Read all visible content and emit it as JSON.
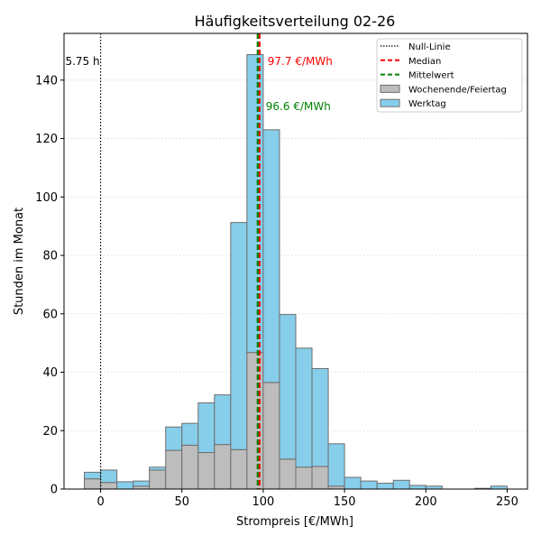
{
  "chart_data": {
    "type": "bar",
    "title": "Häufigkeitsverteilung 02-26",
    "xlabel": "Strompreis [€/MWh]",
    "ylabel": "Stunden im Monat",
    "xlim": [
      -22.5,
      262.5
    ],
    "ylim": [
      0,
      156
    ],
    "xticks": [
      0,
      50,
      100,
      150,
      200,
      250
    ],
    "yticks": [
      0,
      20,
      40,
      60,
      80,
      100,
      120,
      140
    ],
    "grid": "y-dotted",
    "legend_position": "top-right",
    "bins": [
      {
        "from": -10,
        "to": 0,
        "werktag": 2.25,
        "wochenende": 3.5
      },
      {
        "from": 0,
        "to": 10,
        "werktag": 4.25,
        "wochenende": 2.25
      },
      {
        "from": 10,
        "to": 20,
        "werktag": 2.5,
        "wochenende": 0
      },
      {
        "from": 20,
        "to": 30,
        "werktag": 1.75,
        "wochenende": 1
      },
      {
        "from": 30,
        "to": 40,
        "werktag": 1,
        "wochenende": 6.5
      },
      {
        "from": 40,
        "to": 50,
        "werktag": 8,
        "wochenende": 13.25
      },
      {
        "from": 50,
        "to": 60,
        "werktag": 7.5,
        "wochenende": 15
      },
      {
        "from": 60,
        "to": 70,
        "werktag": 17,
        "wochenende": 12.5
      },
      {
        "from": 70,
        "to": 80,
        "werktag": 17,
        "wochenende": 15.25
      },
      {
        "from": 80,
        "to": 90,
        "werktag": 77.75,
        "wochenende": 13.5
      },
      {
        "from": 90,
        "to": 100,
        "werktag": 102,
        "wochenende": 46.75
      },
      {
        "from": 100,
        "to": 110,
        "werktag": 86.5,
        "wochenende": 36.5
      },
      {
        "from": 110,
        "to": 120,
        "werktag": 49.5,
        "wochenende": 10.25
      },
      {
        "from": 120,
        "to": 130,
        "werktag": 40.75,
        "wochenende": 7.5
      },
      {
        "from": 130,
        "to": 140,
        "werktag": 33.5,
        "wochenende": 7.75
      },
      {
        "from": 140,
        "to": 150,
        "werktag": 14.5,
        "wochenende": 1
      },
      {
        "from": 150,
        "to": 160,
        "werktag": 4,
        "wochenende": 0
      },
      {
        "from": 160,
        "to": 170,
        "werktag": 2.75,
        "wochenende": 0
      },
      {
        "from": 170,
        "to": 180,
        "werktag": 2,
        "wochenende": 0
      },
      {
        "from": 180,
        "to": 190,
        "werktag": 3,
        "wochenende": 0
      },
      {
        "from": 190,
        "to": 200,
        "werktag": 1.25,
        "wochenende": 0
      },
      {
        "from": 200,
        "to": 210,
        "werktag": 1,
        "wochenende": 0
      },
      {
        "from": 210,
        "to": 220,
        "werktag": 0,
        "wochenende": 0
      },
      {
        "from": 220,
        "to": 230,
        "werktag": 0,
        "wochenende": 0
      },
      {
        "from": 230,
        "to": 240,
        "werktag": 0.25,
        "wochenende": 0
      },
      {
        "from": 240,
        "to": 250,
        "werktag": 1,
        "wochenende": 0
      }
    ],
    "series": [
      {
        "name": "Wochenende/Feiertag",
        "color": "#bdbdbd",
        "key": "wochenende"
      },
      {
        "name": "Werktag",
        "color": "#87ceeb",
        "key": "werktag"
      }
    ],
    "lines": [
      {
        "name": "Null-Linie",
        "x": 0,
        "color": "#000000",
        "style": "dotted"
      },
      {
        "name": "Median",
        "x": 97.7,
        "color": "#ff0000",
        "style": "dashed"
      },
      {
        "name": "Mittelwert",
        "x": 96.6,
        "color": "#008000",
        "style": "dashed"
      }
    ],
    "annotations": [
      {
        "text": "5.75 h",
        "x": 0,
        "y": 146.5,
        "color": "#000000",
        "anchor": "end"
      },
      {
        "text": "97.7 €/MWh",
        "x": 97.7,
        "y": 146.5,
        "color": "#ff0000",
        "anchor": "start"
      },
      {
        "text": "96.6 €/MWh",
        "x": 96.6,
        "y": 131,
        "color": "#008000",
        "anchor": "start"
      }
    ]
  }
}
